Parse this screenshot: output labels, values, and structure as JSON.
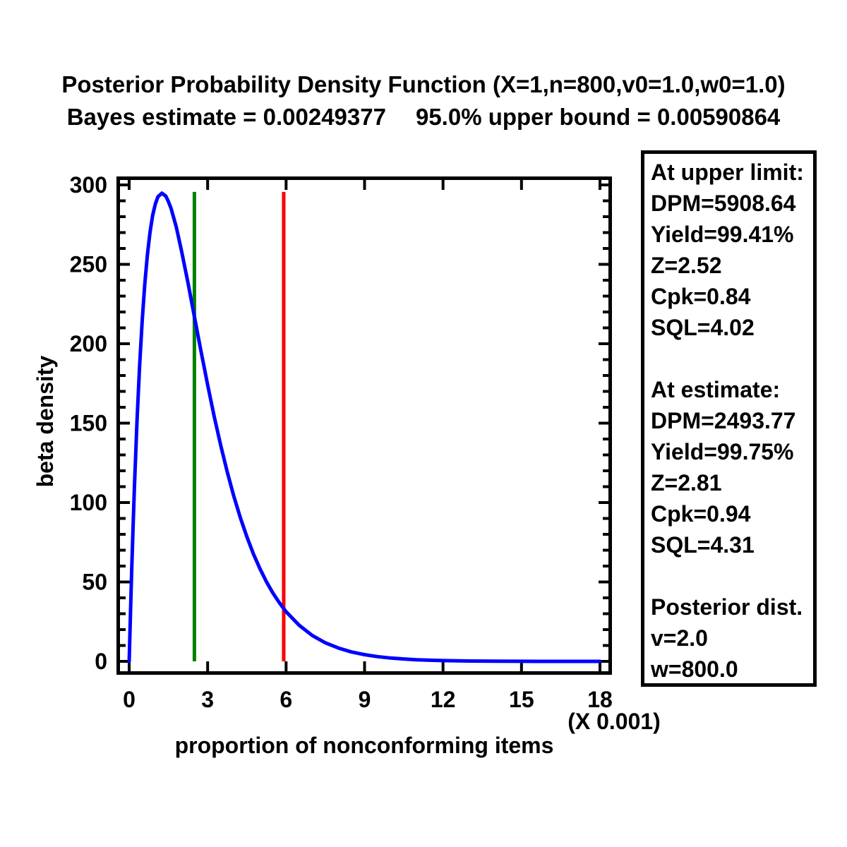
{
  "header": {
    "title": "Posterior Probability Density Function (X=1,n=800,v0=1.0,w0=1.0)",
    "subtitle_left": "Bayes estimate = 0.00249377",
    "subtitle_right": "95.0% upper bound = 0.00590864"
  },
  "chart_data": {
    "type": "line",
    "title": "Posterior Probability Density Function (X=1,n=800,v0=1.0,w0=1.0)",
    "xlabel": "proportion of nonconforming items",
    "ylabel": "beta density",
    "x_scale_note": "(X 0.001)",
    "xlim": [
      0,
      18
    ],
    "ylim": [
      0,
      300
    ],
    "x_ticks": [
      0,
      3,
      6,
      9,
      12,
      15,
      18
    ],
    "y_ticks": [
      0,
      50,
      100,
      150,
      200,
      250,
      300
    ],
    "y_minor_step": 10,
    "grid": false,
    "legend": "none",
    "frame_color": "#000000",
    "series": [
      {
        "name": "posterior-beta-density",
        "distribution": "Beta(v=2.0, w=800.0)",
        "color": "#0000ff",
        "points": [
          [
            0,
            0
          ],
          [
            0.05,
            30.9
          ],
          [
            0.1,
            59.2
          ],
          [
            0.15,
            85.3
          ],
          [
            0.2,
            109.2
          ],
          [
            0.3,
            151.3
          ],
          [
            0.4,
            186.2
          ],
          [
            0.5,
            214.8
          ],
          [
            0.6,
            238.0
          ],
          [
            0.7,
            256.3
          ],
          [
            0.8,
            270.4
          ],
          [
            0.9,
            280.9
          ],
          [
            1.0,
            288.0
          ],
          [
            1.1,
            292.6
          ],
          [
            1.25,
            294.8
          ],
          [
            1.4,
            293.0
          ],
          [
            1.5,
            289.5
          ],
          [
            1.6,
            285.3
          ],
          [
            1.8,
            273.6
          ],
          [
            2.0,
            258.6
          ],
          [
            2.25,
            238.2
          ],
          [
            2.5,
            216.6
          ],
          [
            2.75,
            195.0
          ],
          [
            3.0,
            174.1
          ],
          [
            3.25,
            154.3
          ],
          [
            3.5,
            136.0
          ],
          [
            3.75,
            119.2
          ],
          [
            4.0,
            104.1
          ],
          [
            4.25,
            90.5
          ],
          [
            4.5,
            78.4
          ],
          [
            4.75,
            67.7
          ],
          [
            5.0,
            58.3
          ],
          [
            5.25,
            50.1
          ],
          [
            5.5,
            42.9
          ],
          [
            5.75,
            36.7
          ],
          [
            6.0,
            31.3
          ],
          [
            6.5,
            22.7
          ],
          [
            7.0,
            16.3
          ],
          [
            7.5,
            11.7
          ],
          [
            8.0,
            8.4
          ],
          [
            8.5,
            5.9
          ],
          [
            9.0,
            4.2
          ],
          [
            9.5,
            3.0
          ],
          [
            10.0,
            2.1
          ],
          [
            10.5,
            1.5
          ],
          [
            11.0,
            1.0
          ],
          [
            11.5,
            0.7
          ],
          [
            12.0,
            0.5
          ],
          [
            13.0,
            0.24
          ],
          [
            14.0,
            0.11
          ],
          [
            15.0,
            0.05
          ],
          [
            16.0,
            0.02
          ],
          [
            17.0,
            0.01
          ],
          [
            18.0,
            0.01
          ]
        ]
      }
    ],
    "vertical_lines": [
      {
        "name": "bayes-estimate",
        "x": 2.49377,
        "top": 295.6,
        "color": "#008000"
      },
      {
        "name": "upper-bound-95",
        "x": 5.90864,
        "top": 295.6,
        "color": "#ff0000"
      }
    ]
  },
  "info_box": {
    "sections": [
      {
        "title": "At upper limit:",
        "lines": [
          "DPM=5908.64",
          "Yield=99.41%",
          "Z=2.52",
          "Cpk=0.84",
          "SQL=4.02"
        ]
      },
      {
        "title": "At estimate:",
        "lines": [
          "DPM=2493.77",
          "Yield=99.75%",
          "Z=2.81",
          "Cpk=0.94",
          "SQL=4.31"
        ]
      },
      {
        "title": "Posterior dist.",
        "lines": [
          "v=2.0",
          "w=800.0"
        ]
      }
    ]
  }
}
